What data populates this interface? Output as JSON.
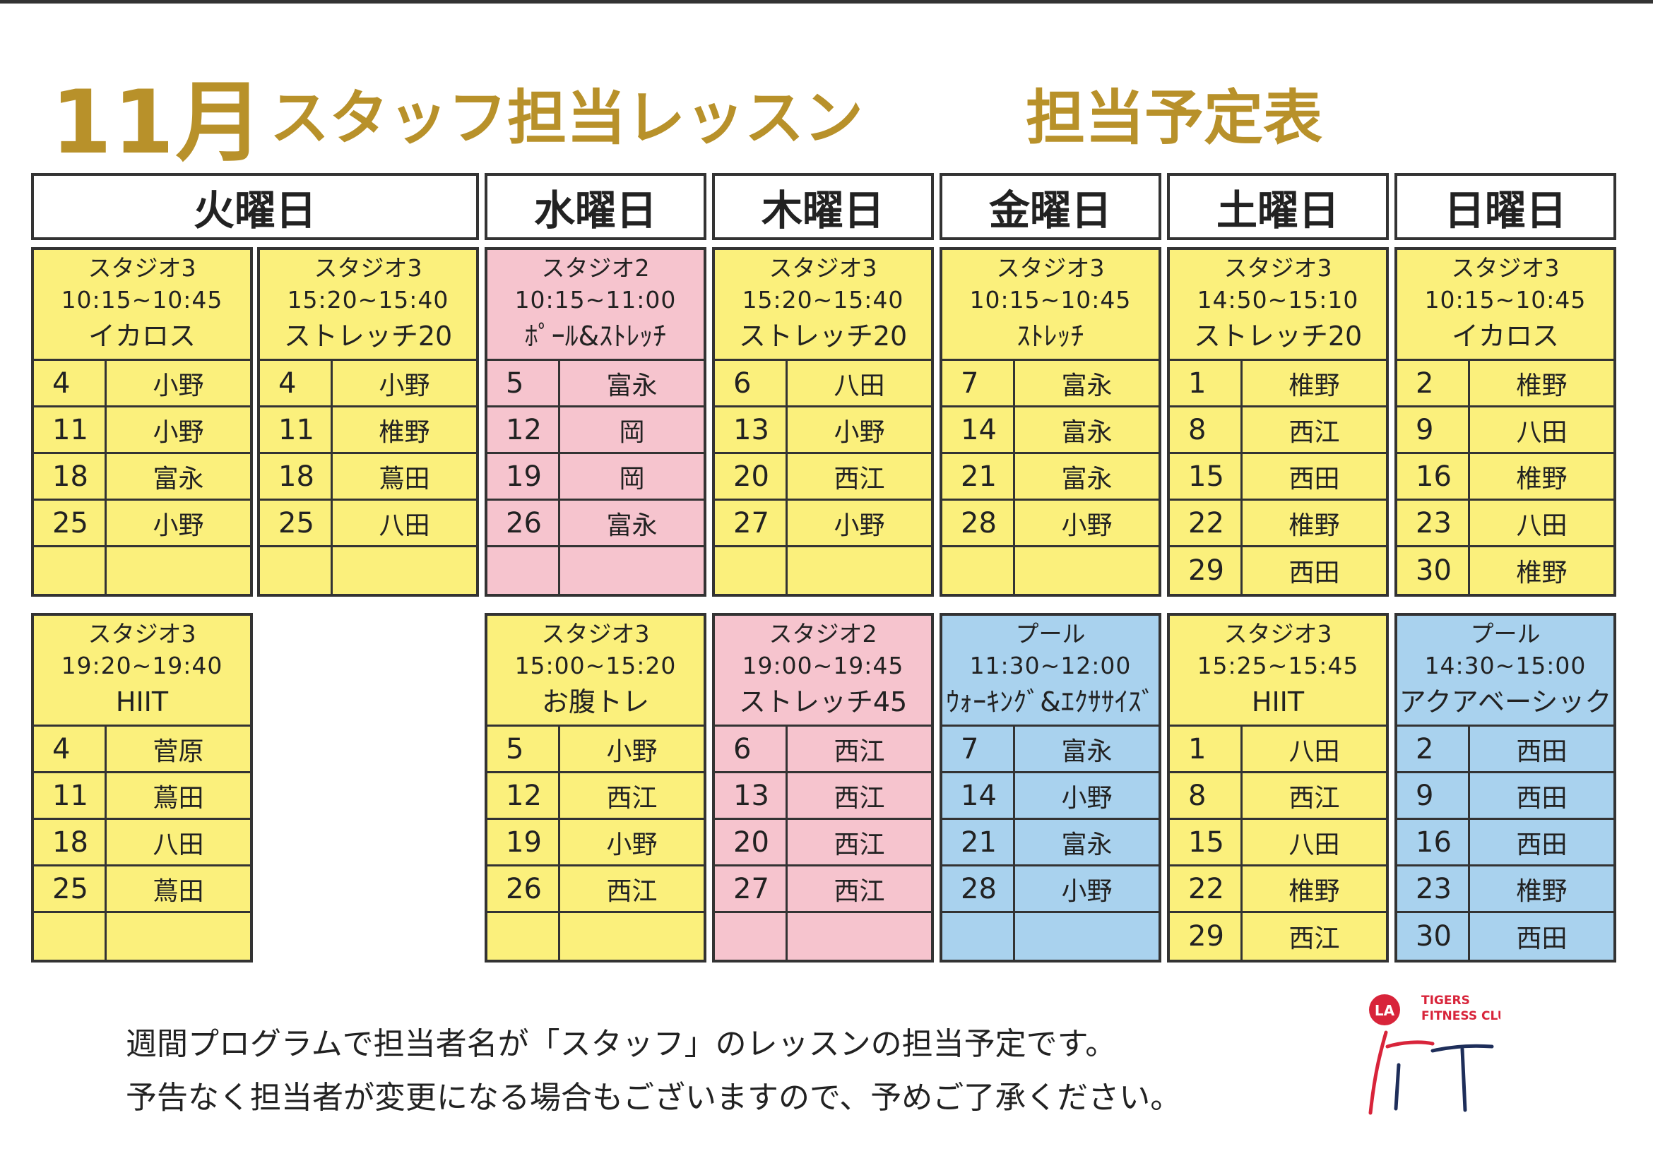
{
  "title": {
    "month": "11月",
    "main": "スタッフ担当レッスン",
    "sub": "担当予定表"
  },
  "days": [
    "火曜日",
    "水曜日",
    "木曜日",
    "金曜日",
    "土曜日",
    "日曜日"
  ],
  "cards": [
    {
      "studio": "スタジオ3",
      "time": "10:15~10:45",
      "class": "イカロス",
      "color": "yellow",
      "rows": [
        [
          "4",
          "小野"
        ],
        [
          "11",
          "小野"
        ],
        [
          "18",
          "富永"
        ],
        [
          "25",
          "小野"
        ],
        [
          "",
          ""
        ]
      ]
    },
    {
      "studio": "スタジオ3",
      "time": "15:20~15:40",
      "class": "ストレッチ20",
      "color": "yellow",
      "rows": [
        [
          "4",
          "小野"
        ],
        [
          "11",
          "椎野"
        ],
        [
          "18",
          "蔦田"
        ],
        [
          "25",
          "八田"
        ],
        [
          "",
          ""
        ]
      ]
    },
    {
      "studio": "スタジオ2",
      "time": "10:15~11:00",
      "class": "ﾎﾟｰﾙ&ｽﾄﾚｯﾁ",
      "color": "pink",
      "rows": [
        [
          "5",
          "富永"
        ],
        [
          "12",
          "岡"
        ],
        [
          "19",
          "岡"
        ],
        [
          "26",
          "富永"
        ],
        [
          "",
          ""
        ]
      ]
    },
    {
      "studio": "スタジオ3",
      "time": "15:20~15:40",
      "class": "ストレッチ20",
      "color": "yellow",
      "rows": [
        [
          "6",
          "八田"
        ],
        [
          "13",
          "小野"
        ],
        [
          "20",
          "西江"
        ],
        [
          "27",
          "小野"
        ],
        [
          "",
          ""
        ]
      ]
    },
    {
      "studio": "スタジオ3",
      "time": "10:15~10:45",
      "class": "ｽﾄﾚｯﾁ",
      "color": "yellow",
      "rows": [
        [
          "7",
          "富永"
        ],
        [
          "14",
          "富永"
        ],
        [
          "21",
          "富永"
        ],
        [
          "28",
          "小野"
        ],
        [
          "",
          ""
        ]
      ]
    },
    {
      "studio": "スタジオ3",
      "time": "14:50~15:10",
      "class": "ストレッチ20",
      "color": "yellow",
      "rows": [
        [
          "1",
          "椎野"
        ],
        [
          "8",
          "西江"
        ],
        [
          "15",
          "西田"
        ],
        [
          "22",
          "椎野"
        ],
        [
          "29",
          "西田"
        ]
      ]
    },
    {
      "studio": "スタジオ3",
      "time": "10:15~10:45",
      "class": "イカロス",
      "color": "yellow",
      "rows": [
        [
          "2",
          "椎野"
        ],
        [
          "9",
          "八田"
        ],
        [
          "16",
          "椎野"
        ],
        [
          "23",
          "八田"
        ],
        [
          "30",
          "椎野"
        ]
      ]
    },
    {
      "studio": "スタジオ3",
      "time": "19:20~19:40",
      "class": "HIIT",
      "color": "yellow",
      "rows": [
        [
          "4",
          "菅原"
        ],
        [
          "11",
          "蔦田"
        ],
        [
          "18",
          "八田"
        ],
        [
          "25",
          "蔦田"
        ],
        [
          "",
          ""
        ]
      ]
    },
    {
      "studio": "スタジオ3",
      "time": "15:00~15:20",
      "class": "お腹トレ",
      "color": "yellow",
      "rows": [
        [
          "5",
          "小野"
        ],
        [
          "12",
          "西江"
        ],
        [
          "19",
          "小野"
        ],
        [
          "26",
          "西江"
        ],
        [
          "",
          ""
        ]
      ]
    },
    {
      "studio": "スタジオ2",
      "time": "19:00~19:45",
      "class": "ストレッチ45",
      "color": "pink",
      "rows": [
        [
          "6",
          "西江"
        ],
        [
          "13",
          "西江"
        ],
        [
          "20",
          "西江"
        ],
        [
          "27",
          "西江"
        ],
        [
          "",
          ""
        ]
      ]
    },
    {
      "studio": "プール",
      "time": "11:30~12:00",
      "class": "ｳｫｰｷﾝｸﾞ&ｴｸｻｻｲｽﾞ",
      "color": "blue",
      "rows": [
        [
          "7",
          "富永"
        ],
        [
          "14",
          "小野"
        ],
        [
          "21",
          "富永"
        ],
        [
          "28",
          "小野"
        ],
        [
          "",
          ""
        ]
      ]
    },
    {
      "studio": "スタジオ3",
      "time": "15:25~15:45",
      "class": "HIIT",
      "color": "yellow",
      "rows": [
        [
          "1",
          "八田"
        ],
        [
          "8",
          "西江"
        ],
        [
          "15",
          "八田"
        ],
        [
          "22",
          "椎野"
        ],
        [
          "29",
          "西江"
        ]
      ]
    },
    {
      "studio": "プール",
      "time": "14:30~15:00",
      "class": "アクアベーシック",
      "color": "blue",
      "rows": [
        [
          "2",
          "西田"
        ],
        [
          "9",
          "西田"
        ],
        [
          "16",
          "西田"
        ],
        [
          "23",
          "椎野"
        ],
        [
          "30",
          "西田"
        ]
      ]
    }
  ],
  "footer": {
    "line1": "週間プログラムで担当者名が「スタッフ」のレッスンの担当予定です。",
    "line2": "予告なく担当者が変更になる場合もございますので、予めご了承ください。"
  },
  "logo": {
    "la": "LA",
    "tigers": "TIGERS",
    "fitness": "FITNESS CLUB",
    "fit": "FIT",
    "accent": "#d8243a",
    "dark": "#1e2e5a"
  },
  "colors": {
    "title": "#b8912a",
    "yellow": "#fbf07c",
    "pink": "#f6c4ce",
    "blue": "#a9d2ee"
  }
}
